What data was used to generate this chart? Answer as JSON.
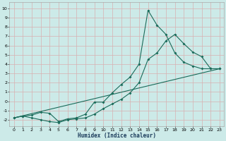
{
  "xlabel": "Humidex (Indice chaleur)",
  "bg_color": "#cceae8",
  "grid_color": "#b0d8d5",
  "line_color": "#1a6b5a",
  "xlim": [
    -0.5,
    23.5
  ],
  "ylim": [
    -2.7,
    10.7
  ],
  "xticks": [
    0,
    1,
    2,
    3,
    4,
    5,
    6,
    7,
    8,
    9,
    10,
    11,
    12,
    13,
    14,
    15,
    16,
    17,
    18,
    19,
    20,
    21,
    22,
    23
  ],
  "yticks": [
    -2,
    -1,
    0,
    1,
    2,
    3,
    4,
    5,
    6,
    7,
    8,
    9,
    10
  ],
  "curve1_x": [
    0,
    1,
    2,
    3,
    4,
    5,
    6,
    7,
    8,
    9,
    10,
    11,
    12,
    13,
    14,
    15,
    16,
    17,
    18,
    19,
    20,
    21,
    22,
    23
  ],
  "curve1_y": [
    -1.8,
    -1.6,
    -1.8,
    -2.0,
    -2.2,
    -2.3,
    -2.0,
    -1.9,
    -1.8,
    -1.4,
    -0.8,
    -0.3,
    0.2,
    0.9,
    2.0,
    4.5,
    5.2,
    6.5,
    7.2,
    6.2,
    5.3,
    4.8,
    3.5,
    3.5
  ],
  "curve2_x": [
    0,
    1,
    2,
    3,
    4,
    5,
    6,
    7,
    8,
    9,
    10,
    11,
    12,
    13,
    14,
    15,
    16,
    17,
    18,
    19,
    20,
    21,
    22,
    23
  ],
  "curve2_y": [
    -1.8,
    -1.6,
    -1.5,
    -1.2,
    -1.3,
    -2.2,
    -1.9,
    -1.8,
    -1.4,
    -0.1,
    -0.1,
    0.9,
    1.8,
    2.6,
    4.0,
    9.8,
    8.2,
    7.2,
    5.2,
    4.2,
    3.8,
    3.5,
    3.5,
    3.5
  ],
  "line_x": [
    0,
    23
  ],
  "line_y": [
    -1.8,
    3.5
  ],
  "marker_size": 2.0,
  "line_width": 0.8,
  "tick_fontsize": 4.5,
  "xlabel_fontsize": 5.5
}
